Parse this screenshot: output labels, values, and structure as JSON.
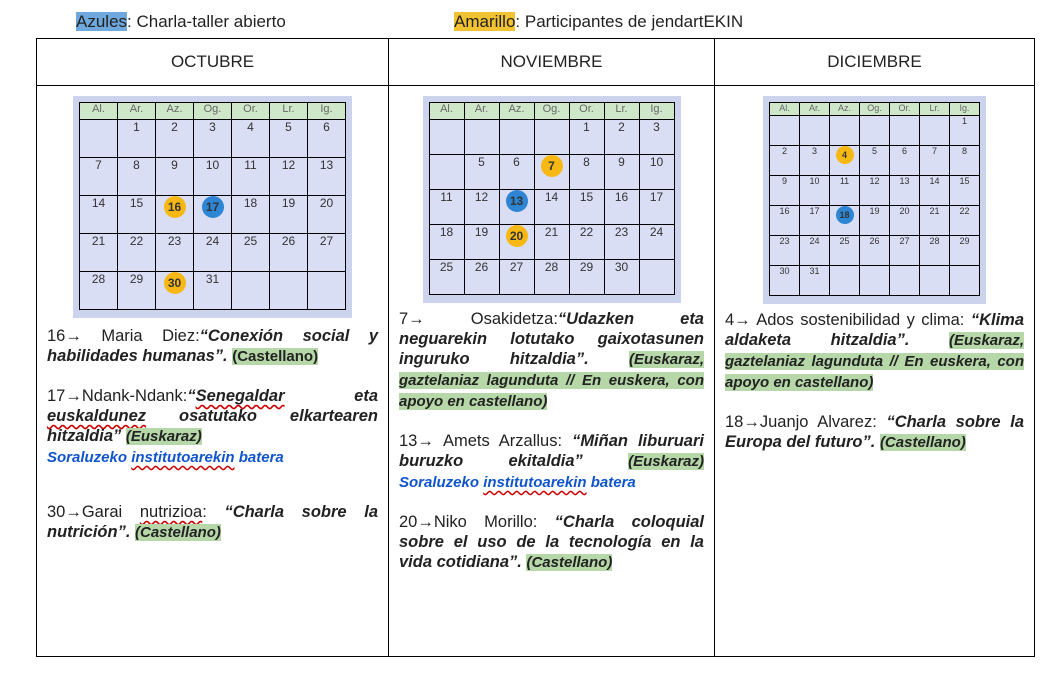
{
  "legend": {
    "blue_word": "Azules",
    "blue_rest": ": Charla-taller abierto",
    "yellow_word": "Amarillo",
    "yellow_rest": ": Participantes de jendartEKIN"
  },
  "columns": [
    "OCTUBRE",
    "NOVIEMBRE",
    "DICIEMBRE"
  ],
  "weekdays": [
    "Al.",
    "Ar.",
    "Az.",
    "Og.",
    "Or.",
    "Lr.",
    "Ig."
  ],
  "calendars": [
    {
      "weeks": [
        [
          "",
          "1",
          "2",
          "3",
          "4",
          "5",
          "6"
        ],
        [
          "7",
          "8",
          "9",
          "10",
          "11",
          "12",
          "13"
        ],
        [
          "14",
          "15",
          "16",
          "17",
          "18",
          "19",
          "20"
        ],
        [
          "21",
          "22",
          "23",
          "24",
          "25",
          "26",
          "27"
        ],
        [
          "28",
          "29",
          "30",
          "31",
          "",
          "",
          ""
        ]
      ],
      "highlights": {
        "16": "y",
        "17": "b",
        "30": "y"
      }
    },
    {
      "weeks": [
        [
          "",
          "",
          "",
          "",
          "1",
          "2",
          "3"
        ],
        [
          "",
          "5",
          "6",
          "7",
          "8",
          "9",
          "10"
        ],
        [
          "11",
          "12",
          "13",
          "14",
          "15",
          "16",
          "17"
        ],
        [
          "18",
          "19",
          "20",
          "21",
          "22",
          "23",
          "24"
        ],
        [
          "25",
          "26",
          "27",
          "28",
          "29",
          "30",
          ""
        ]
      ],
      "highlights": {
        "7": "y",
        "13": "b",
        "20": "y"
      }
    },
    {
      "weeks": [
        [
          "",
          "",
          "",
          "",
          "",
          "",
          "1"
        ],
        [
          "2",
          "3",
          "4",
          "5",
          "6",
          "7",
          "8"
        ],
        [
          "9",
          "10",
          "11",
          "12",
          "13",
          "14",
          "15"
        ],
        [
          "16",
          "17",
          "18",
          "19",
          "20",
          "21",
          "22"
        ],
        [
          "23",
          "24",
          "25",
          "26",
          "27",
          "28",
          "29"
        ],
        [
          "30",
          "31",
          "",
          "",
          "",
          "",
          ""
        ]
      ],
      "highlights": {
        "4": "y",
        "18": "b"
      }
    }
  ],
  "octubre": {
    "e1_pre": "16→ Maria Diez:",
    "e1_title": "“Conexión social y habilidades humanas”.",
    "e1_tag": "(Castellano)",
    "e2_pre": "17→Ndank-Ndank:",
    "e2_title_a": "“",
    "e2_title_b": "Senegaldar",
    "e2_title_c": " eta ",
    "e2_title_d": "euskaldunez",
    "e2_title_e": " osatutako elkartearen hitzaldia”",
    "e2_tag": "(Euskaraz)",
    "e2_note_a": "Soraluzeko ",
    "e2_note_b": "institutoarekin",
    "e2_note_c": " batera",
    "e3_pre_a": "30→Garai ",
    "e3_pre_b": "nutrizioa",
    "e3_pre_c": ": ",
    "e3_title": "“Charla sobre la nutrición”.",
    "e3_tag": "(Castellano)"
  },
  "noviembre": {
    "e1_pre": "7→ Osakidetza:",
    "e1_title": "“Udazken eta neguarekin lotutako gaixotasunen inguruko hitzaldia”.",
    "e1_tag": "(Euskaraz, gaztelaniaz lagunduta // En euskera, con apoyo en castellano)",
    "e2_pre": "13→ Amets Arzallus: ",
    "e2_title": "“Miñan liburuari buruzko ekitaldia”",
    "e2_tag": "(Euskaraz)",
    "e2_note_a": "Soraluzeko ",
    "e2_note_b": "institutoarekin",
    "e2_note_c": " batera",
    "e3_pre": "20→Niko Morillo: ",
    "e3_title": "“Charla coloquial sobre el uso de la tecnología en la vida cotidiana”.",
    "e3_tag": "(Castellano)"
  },
  "diciembre": {
    "e1_pre": "4→ Ados sostenibilidad y clima: ",
    "e1_title": "“Klima aldaketa hitzaldia”.",
    "e1_tag": "(Euskaraz, gaztelaniaz lagunduta // En euskera, con apoyo en castellano)",
    "e2_pre": "18→Juanjo Alvarez: ",
    "e2_title": "“Charla sobre la Europa del futuro”.",
    "e2_tag": "(Castellano)"
  },
  "colors": {
    "blue_dot": "#2e85d3",
    "yellow_dot": "#f8b814",
    "tag_green": "#b6d7a8",
    "note_blue": "#1155cc"
  }
}
